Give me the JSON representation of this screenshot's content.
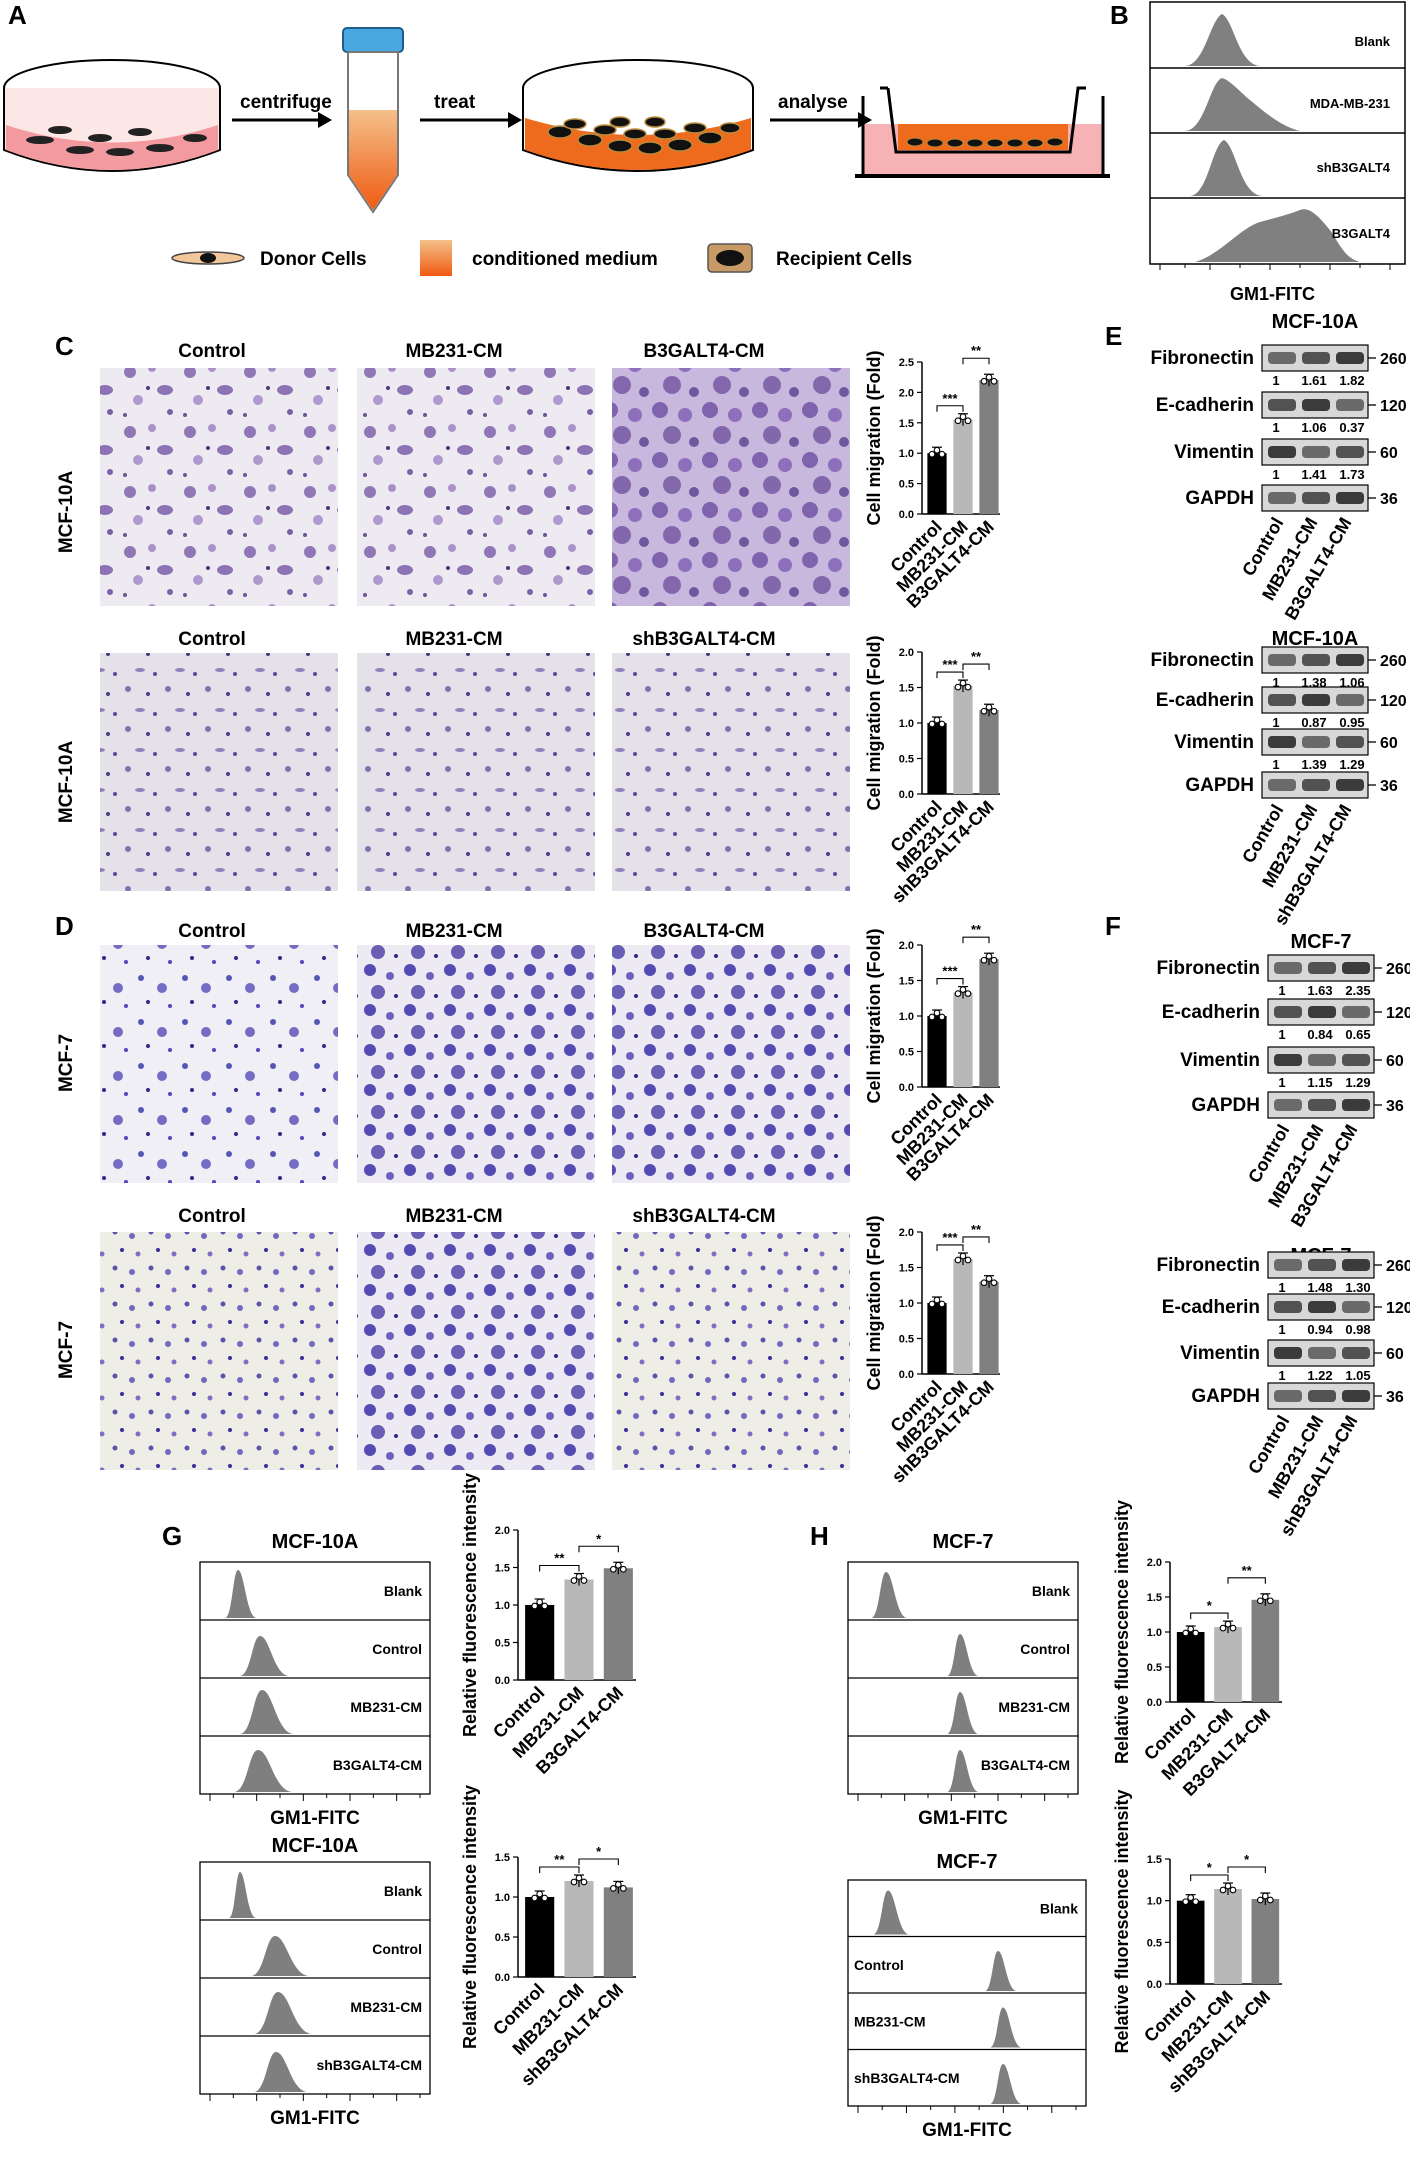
{
  "panels": {
    "A": "A",
    "B": "B",
    "C": "C",
    "D": "D",
    "E": "E",
    "F": "F",
    "G": "G",
    "H": "H"
  },
  "schematic": {
    "steps": [
      "centrifuge",
      "treat",
      "analyse"
    ],
    "legend": [
      "Donor Cells",
      "conditioned medium",
      "Recipient Cells"
    ]
  },
  "histB": {
    "rows": [
      "Blank",
      "MDA-MB-231",
      "shB3GALT4",
      "B3GALT4"
    ],
    "xlabel": "GM1-FITC"
  },
  "migration": {
    "row1": {
      "cell": "MCF-10A",
      "cols": [
        "Control",
        "MB231-CM",
        "B3GALT4-CM"
      ]
    },
    "row2": {
      "cell": "MCF-10A",
      "cols": [
        "Control",
        "MB231-CM",
        "shB3GALT4-CM"
      ]
    },
    "row3": {
      "cell": "MCF-7",
      "cols": [
        "Control",
        "MB231-CM",
        "B3GALT4-CM"
      ]
    },
    "row4": {
      "cell": "MCF-7",
      "cols": [
        "Control",
        "MB231-CM",
        "shB3GALT4-CM"
      ]
    }
  },
  "blots": [
    {
      "cell": "MCF-10A",
      "rows": [
        {
          "name": "Fibronectin",
          "kda": "260",
          "vals": [
            "1",
            "1.61",
            "1.82"
          ]
        },
        {
          "name": "E-cadherin",
          "kda": "120",
          "vals": [
            "1",
            "1.06",
            "0.37"
          ]
        },
        {
          "name": "Vimentin",
          "kda": "60",
          "vals": [
            "1",
            "1.41",
            "1.73"
          ]
        },
        {
          "name": "GAPDH",
          "kda": "36",
          "vals": []
        }
      ],
      "lanes": [
        "Control",
        "MB231-CM",
        "B3GALT4-CM"
      ]
    },
    {
      "cell": "MCF-10A",
      "rows": [
        {
          "name": "Fibronectin",
          "kda": "260",
          "vals": [
            "1",
            "1.38",
            "1.06"
          ]
        },
        {
          "name": "E-cadherin",
          "kda": "120",
          "vals": [
            "1",
            "0.87",
            "0.95"
          ]
        },
        {
          "name": "Vimentin",
          "kda": "60",
          "vals": [
            "1",
            "1.39",
            "1.29"
          ]
        },
        {
          "name": "GAPDH",
          "kda": "36",
          "vals": []
        }
      ],
      "lanes": [
        "Control",
        "MB231-CM",
        "shB3GALT4-CM"
      ]
    },
    {
      "cell": "MCF-7",
      "rows": [
        {
          "name": "Fibronectin",
          "kda": "260",
          "vals": [
            "1",
            "1.63",
            "2.35"
          ]
        },
        {
          "name": "E-cadherin",
          "kda": "120",
          "vals": [
            "1",
            "0.84",
            "0.65"
          ]
        },
        {
          "name": "Vimentin",
          "kda": "60",
          "vals": [
            "1",
            "1.15",
            "1.29"
          ]
        },
        {
          "name": "GAPDH",
          "kda": "36",
          "vals": []
        }
      ],
      "lanes": [
        "Control",
        "MB231-CM",
        "B3GALT4-CM"
      ]
    },
    {
      "cell": "MCF-7",
      "rows": [
        {
          "name": "Fibronectin",
          "kda": "260",
          "vals": [
            "1",
            "1.48",
            "1.30"
          ]
        },
        {
          "name": "E-cadherin",
          "kda": "120",
          "vals": [
            "1",
            "0.94",
            "0.98"
          ]
        },
        {
          "name": "Vimentin",
          "kda": "60",
          "vals": [
            "1",
            "1.22",
            "1.05"
          ]
        },
        {
          "name": "GAPDH",
          "kda": "36",
          "vals": []
        }
      ],
      "lanes": [
        "Control",
        "MB231-CM",
        "shB3GALT4-CM"
      ]
    }
  ],
  "flow": {
    "G1": {
      "title": "MCF-10A",
      "rows": [
        "Blank",
        "Control",
        "MB231-CM",
        "B3GALT4-CM"
      ],
      "xlabel": "GM1-FITC"
    },
    "G2": {
      "title": "MCF-10A",
      "rows": [
        "Blank",
        "Control",
        "MB231-CM",
        "shB3GALT4-CM"
      ],
      "xlabel": "GM1-FITC"
    },
    "H1": {
      "title": "MCF-7",
      "rows": [
        "Blank",
        "Control",
        "MB231-CM",
        "B3GALT4-CM"
      ],
      "xlabel": "GM1-FITC"
    },
    "H2": {
      "title": "MCF-7",
      "rows": [
        "Blank",
        "Control",
        "MB231-CM",
        "shB3GALT4-CM"
      ],
      "xlabel": "GM1-FITC"
    }
  },
  "chart_data": [
    {
      "type": "bar",
      "ylabel": "Cell migration (Fold)",
      "categories": [
        "Control",
        "MB231-CM",
        "B3GALT4-CM"
      ],
      "values": [
        1.0,
        1.55,
        2.2
      ],
      "ylim": [
        0,
        2.5
      ],
      "yticks": [
        "0.0",
        "0.5",
        "1.0",
        "1.5",
        "2.0",
        "2.5"
      ],
      "colors": [
        "#000000",
        "#b8b8b8",
        "#808080"
      ],
      "sig": [
        "***",
        "**"
      ]
    },
    {
      "type": "bar",
      "ylabel": "Cell migration (Fold)",
      "categories": [
        "Control",
        "MB231-CM",
        "shB3GALT4-CM"
      ],
      "values": [
        1.0,
        1.52,
        1.18
      ],
      "ylim": [
        0,
        2.0
      ],
      "yticks": [
        "0.0",
        "0.5",
        "1.0",
        "1.5",
        "2.0"
      ],
      "colors": [
        "#000000",
        "#b8b8b8",
        "#808080"
      ],
      "sig": [
        "***",
        "**"
      ]
    },
    {
      "type": "bar",
      "ylabel": "Cell migration (Fold)",
      "categories": [
        "Control",
        "MB231-CM",
        "B3GALT4-CM"
      ],
      "values": [
        1.0,
        1.33,
        1.8
      ],
      "ylim": [
        0,
        2.0
      ],
      "yticks": [
        "0.0",
        "0.5",
        "1.0",
        "1.5",
        "2.0"
      ],
      "colors": [
        "#000000",
        "#b8b8b8",
        "#808080"
      ],
      "sig": [
        "***",
        "**"
      ]
    },
    {
      "type": "bar",
      "ylabel": "Cell migration (Fold)",
      "categories": [
        "Control",
        "MB231-CM",
        "shB3GALT4-CM"
      ],
      "values": [
        1.0,
        1.62,
        1.3
      ],
      "ylim": [
        0,
        2.0
      ],
      "yticks": [
        "0.0",
        "0.5",
        "1.0",
        "1.5",
        "2.0"
      ],
      "colors": [
        "#000000",
        "#b8b8b8",
        "#808080"
      ],
      "sig": [
        "***",
        "**"
      ]
    },
    {
      "type": "bar",
      "ylabel": "Relative fluorescence intensity",
      "categories": [
        "Control",
        "MB231-CM",
        "B3GALT4-CM"
      ],
      "values": [
        1.0,
        1.34,
        1.49
      ],
      "ylim": [
        0,
        2.0
      ],
      "yticks": [
        "0.0",
        "0.5",
        "1.0",
        "1.5",
        "2.0"
      ],
      "colors": [
        "#000000",
        "#b8b8b8",
        "#808080"
      ],
      "sig": [
        "**",
        "*"
      ]
    },
    {
      "type": "bar",
      "ylabel": "Relative fluorescence intensity",
      "categories": [
        "Control",
        "MB231-CM",
        "shB3GALT4-CM"
      ],
      "values": [
        1.0,
        1.2,
        1.12
      ],
      "ylim": [
        0,
        1.5
      ],
      "yticks": [
        "0.0",
        "0.5",
        "1.0",
        "1.5"
      ],
      "colors": [
        "#000000",
        "#b8b8b8",
        "#808080"
      ],
      "sig": [
        "**",
        "*"
      ]
    },
    {
      "type": "bar",
      "ylabel": "Relative fluorescence intensity",
      "categories": [
        "Control",
        "MB231-CM",
        "B3GALT4-CM"
      ],
      "values": [
        1.0,
        1.07,
        1.46
      ],
      "ylim": [
        0,
        2.0
      ],
      "yticks": [
        "0.0",
        "0.5",
        "1.0",
        "1.5",
        "2.0"
      ],
      "colors": [
        "#000000",
        "#b8b8b8",
        "#808080"
      ],
      "sig": [
        "*",
        "**"
      ]
    },
    {
      "type": "bar",
      "ylabel": "Relative fluorescence intensity",
      "categories": [
        "Control",
        "MB231-CM",
        "shB3GALT4-CM"
      ],
      "values": [
        1.0,
        1.14,
        1.02
      ],
      "ylim": [
        0,
        1.5
      ],
      "yticks": [
        "0.0",
        "0.5",
        "1.0",
        "1.5"
      ],
      "colors": [
        "#000000",
        "#b8b8b8",
        "#808080"
      ],
      "sig": [
        "*",
        "*"
      ]
    }
  ]
}
